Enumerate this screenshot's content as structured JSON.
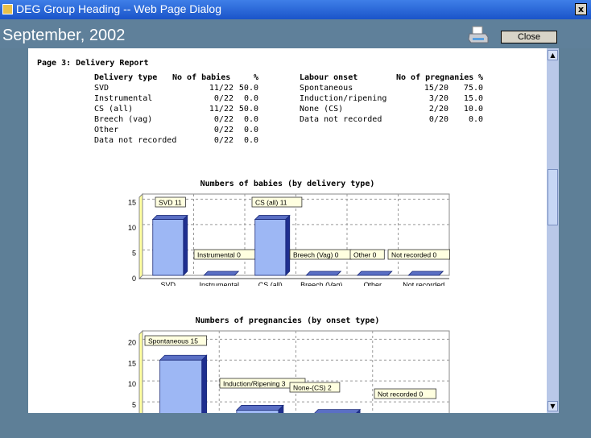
{
  "window": {
    "title": "DEG Group Heading -- Web Page Dialog",
    "close_x": "x"
  },
  "header": {
    "month": "September, 2002",
    "close_label": "Close"
  },
  "report": {
    "page_title": "Page 3: Delivery Report",
    "delivery": {
      "headers": [
        "Delivery type",
        "No of babies",
        "%"
      ],
      "rows": [
        [
          "SVD",
          "11/22",
          "50.0"
        ],
        [
          "Instrumental",
          "0/22",
          "0.0"
        ],
        [
          "CS (all)",
          "11/22",
          "50.0"
        ],
        [
          "Breech (vag)",
          "0/22",
          "0.0"
        ],
        [
          "Other",
          "0/22",
          "0.0"
        ],
        [
          "Data not recorded",
          "0/22",
          "0.0"
        ]
      ]
    },
    "labour": {
      "headers": [
        "Labour onset",
        "No of pregnanies",
        "%"
      ],
      "rows": [
        [
          "Spontaneous",
          "15/20",
          "75.0"
        ],
        [
          "Induction/ripening",
          "3/20",
          "15.0"
        ],
        [
          "None (CS)",
          "2/20",
          "10.0"
        ],
        [
          "Data not recorded",
          "0/20",
          "0.0"
        ]
      ]
    }
  },
  "chart_data": [
    {
      "type": "bar",
      "title": "Numbers of babies (by delivery type)",
      "categories": [
        "SVD",
        "Instrumental",
        "CS (all)",
        "Breech (Vag)",
        "Other",
        "Not recorded"
      ],
      "values": [
        11,
        0,
        11,
        0,
        0,
        0
      ],
      "data_labels": [
        "SVD 11",
        "Instrumental 0",
        "CS (all) 11",
        "Breech (Vag) 0",
        "Other 0",
        "Not recorded 0"
      ],
      "yticks": [
        0,
        5,
        10,
        15
      ],
      "ylim": [
        0,
        16
      ],
      "grid": true,
      "color": "#9db7f4"
    },
    {
      "type": "bar",
      "title": "Numbers of pregnancies (by onset type)",
      "categories": [
        "Spontaneous",
        "Induction/Ripening",
        "None-(CS)",
        "Not recorded"
      ],
      "values": [
        15,
        3,
        2,
        0
      ],
      "data_labels": [
        "Spontaneous 15",
        "Induction/Ripening 3",
        "None-(CS) 2",
        "Not recorded 0"
      ],
      "yticks": [
        0,
        5,
        10,
        15,
        20
      ],
      "ylim": [
        0,
        22
      ],
      "grid": true,
      "color": "#9db7f4"
    }
  ]
}
